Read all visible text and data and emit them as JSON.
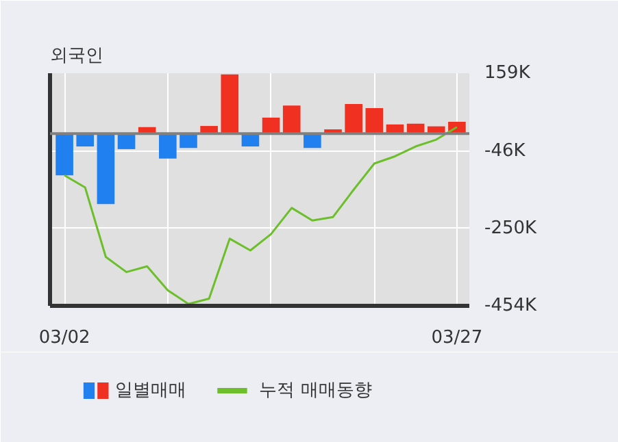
{
  "chart_data": {
    "type": "bar",
    "title": "외국인",
    "categories": [
      "03/02",
      null,
      null,
      null,
      null,
      null,
      null,
      null,
      null,
      null,
      null,
      null,
      null,
      null,
      null,
      null,
      null,
      null,
      null,
      "03/27"
    ],
    "series": [
      {
        "name": "일별매매",
        "values": [
          -110,
          -34,
          -186,
          -41,
          17,
          -66,
          -38,
          20,
          156,
          -34,
          42,
          74,
          -38,
          11,
          78,
          67,
          24,
          26,
          19,
          31
        ],
        "colors": [
          "#2080f0",
          "#2080f0",
          "#2080f0",
          "#2080f0",
          "#f03020",
          "#2080f0",
          "#2080f0",
          "#f03020",
          "#f03020",
          "#2080f0",
          "#f03020",
          "#f03020",
          "#2080f0",
          "#f03020",
          "#f03020",
          "#f03020",
          "#f03020",
          "#f03020",
          "#f03020",
          "#f03020"
        ]
      },
      {
        "name": "누적 매매동향",
        "type": "line",
        "color": "#6cbf2a",
        "values": [
          -110,
          -142,
          -325,
          -365,
          -350,
          -413,
          -449,
          -435,
          -277,
          -308,
          -265,
          -196,
          -229,
          -220,
          -148,
          -79,
          -60,
          -34,
          -16,
          17
        ]
      }
    ],
    "ylim": [
      -454,
      159
    ],
    "yticks": [
      {
        "value": 159,
        "label": "159K"
      },
      {
        "value": -46,
        "label": "-46K"
      },
      {
        "value": -250,
        "label": "-250K"
      },
      {
        "value": -454,
        "label": "-454K"
      }
    ],
    "grid": true,
    "legend": "bottom",
    "marker": "none",
    "line_style": "solid"
  }
}
